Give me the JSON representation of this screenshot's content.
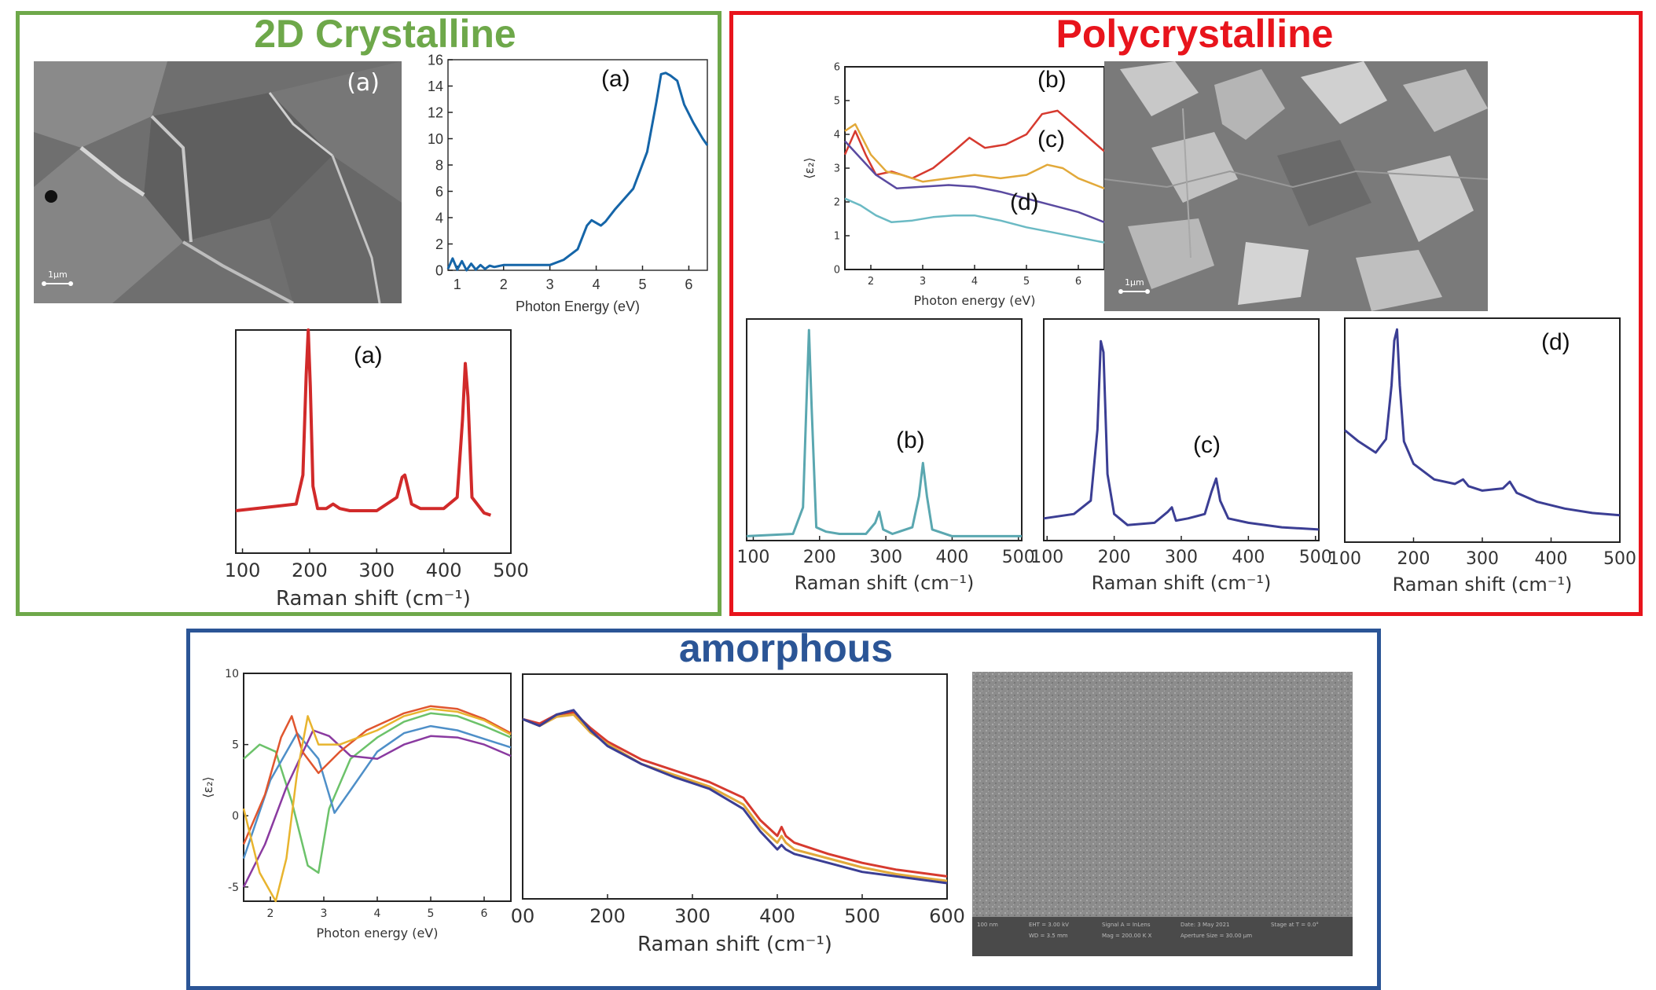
{
  "colors": {
    "green_frame": "#6ea84a",
    "red_frame": "#e8141c",
    "blue_frame": "#2b5596",
    "teal": "#5aa7b0",
    "indigo": "#3b3e94",
    "red_line": "#d12a2a",
    "blue_line": "#1565a8"
  },
  "panels": {
    "crystalline": {
      "title": "2D Crystalline",
      "sem_label": "(a)",
      "scale_label": "1μm"
    },
    "poly": {
      "title": "Polycrystalline",
      "scale_label": "1μm"
    },
    "amorphous": {
      "title": "amorphous",
      "footer": {
        "scale": "100 nm",
        "emt": "EHT = 3.00 kV",
        "wd": "WD = 3.5 mm",
        "signal": "Signal A = InLens",
        "mag": "Mag = 200.00 K X",
        "date": "Date: 3 May 2021",
        "aperture": "Aperture Size = 30.00 μm",
        "stage": "Stage at T = 0.0°"
      }
    }
  },
  "chart_data": [
    {
      "id": "cryst-optical",
      "type": "line",
      "panel_label": "(a)",
      "xlabel": "Photon Energy (eV)",
      "ylabel": "",
      "xlim": [
        0.8,
        6.4
      ],
      "ylim": [
        0,
        16
      ],
      "xticks": [
        "1",
        "2",
        "3",
        "4",
        "5",
        "6"
      ],
      "yticks": [
        "0",
        "2",
        "4",
        "6",
        "8",
        "10",
        "12",
        "14",
        "16"
      ],
      "series": [
        {
          "name": "(a)",
          "color": "#1565a8",
          "x": [
            0.8,
            0.9,
            1.0,
            1.1,
            1.2,
            1.3,
            1.4,
            1.5,
            1.6,
            1.7,
            1.8,
            2.0,
            2.5,
            3.0,
            3.3,
            3.6,
            3.8,
            3.9,
            4.0,
            4.1,
            4.2,
            4.4,
            4.8,
            5.1,
            5.3,
            5.4,
            5.5,
            5.6,
            5.75,
            5.9,
            6.1,
            6.3,
            6.4
          ],
          "y": [
            0.1,
            0.9,
            0.05,
            0.7,
            0.0,
            0.5,
            0.05,
            0.4,
            0.1,
            0.35,
            0.25,
            0.4,
            0.4,
            0.4,
            0.8,
            1.6,
            3.4,
            3.8,
            3.6,
            3.4,
            3.7,
            4.6,
            6.2,
            9.0,
            12.8,
            14.9,
            15.0,
            14.8,
            14.4,
            12.6,
            11.2,
            10.0,
            9.5
          ]
        }
      ]
    },
    {
      "id": "cryst-raman",
      "type": "line",
      "panel_label": "(a)",
      "xlabel": "Raman shift (cm⁻¹)",
      "xlim": [
        90,
        500
      ],
      "ylim": [
        0,
        1
      ],
      "xticks": [
        "100",
        "200",
        "300",
        "400",
        "500"
      ],
      "series": [
        {
          "name": "(a)",
          "color": "#d12a2a",
          "x": [
            90,
            150,
            180,
            190,
            195,
            198,
            201,
            205,
            212,
            225,
            235,
            245,
            260,
            300,
            330,
            338,
            342,
            346,
            352,
            365,
            400,
            420,
            428,
            432,
            436,
            442,
            460,
            470
          ],
          "y": [
            0.19,
            0.21,
            0.22,
            0.35,
            0.8,
            1.0,
            0.75,
            0.3,
            0.2,
            0.2,
            0.22,
            0.2,
            0.19,
            0.19,
            0.25,
            0.34,
            0.35,
            0.3,
            0.22,
            0.2,
            0.2,
            0.25,
            0.6,
            0.85,
            0.7,
            0.25,
            0.18,
            0.17
          ]
        }
      ]
    },
    {
      "id": "poly-optical",
      "type": "line",
      "panel_labels": [
        "(b)",
        "(c)",
        "(d)"
      ],
      "xlabel": "Photon energy (eV)",
      "ylabel": "⟨ε₂⟩",
      "xlim": [
        1.5,
        6.5
      ],
      "ylim": [
        0,
        6
      ],
      "xticks": [
        "2",
        "3",
        "4",
        "5",
        "6"
      ],
      "yticks": [
        "0",
        "1",
        "2",
        "3",
        "4",
        "5",
        "6"
      ],
      "series": [
        {
          "name": "(b)",
          "color": "#d63a2f",
          "x": [
            1.5,
            1.7,
            1.9,
            2.1,
            2.4,
            2.8,
            3.2,
            3.6,
            3.9,
            4.2,
            4.6,
            5.0,
            5.3,
            5.6,
            5.9,
            6.2,
            6.5
          ],
          "y": [
            3.4,
            4.1,
            3.4,
            2.8,
            2.9,
            2.7,
            3.0,
            3.5,
            3.9,
            3.6,
            3.7,
            4.0,
            4.6,
            4.7,
            4.3,
            3.9,
            3.5
          ]
        },
        {
          "name": "(c)",
          "color": "#e2a93a",
          "x": [
            1.5,
            1.7,
            2.0,
            2.3,
            2.6,
            3.0,
            3.5,
            4.0,
            4.5,
            5.0,
            5.4,
            5.7,
            6.0,
            6.5
          ],
          "y": [
            4.1,
            4.3,
            3.4,
            2.9,
            2.8,
            2.6,
            2.7,
            2.8,
            2.7,
            2.8,
            3.1,
            3.0,
            2.7,
            2.4
          ]
        },
        {
          "name": "(d)",
          "color": "#5a4aa0",
          "x": [
            1.5,
            1.8,
            2.1,
            2.5,
            3.0,
            3.5,
            4.0,
            4.5,
            5.0,
            5.5,
            6.0,
            6.5
          ],
          "y": [
            3.8,
            3.3,
            2.8,
            2.4,
            2.45,
            2.5,
            2.45,
            2.3,
            2.1,
            1.9,
            1.7,
            1.4
          ]
        },
        {
          "name": "teal",
          "color": "#6bbac4",
          "x": [
            1.5,
            1.8,
            2.1,
            2.4,
            2.8,
            3.2,
            3.6,
            4.0,
            4.5,
            5.0,
            5.5,
            6.0,
            6.5
          ],
          "y": [
            2.1,
            1.9,
            1.6,
            1.4,
            1.45,
            1.55,
            1.6,
            1.6,
            1.45,
            1.25,
            1.1,
            0.95,
            0.8
          ]
        }
      ]
    },
    {
      "id": "poly-raman-b",
      "type": "line",
      "panel_label": "(b)",
      "xlabel": "Raman shift (cm⁻¹)",
      "xlim": [
        90,
        505
      ],
      "ylim": [
        0,
        1
      ],
      "xticks": [
        "100",
        "200",
        "300",
        "400",
        "500"
      ],
      "series": [
        {
          "name": "(b)",
          "color": "#5aa7b0",
          "x": [
            90,
            160,
            175,
            180,
            184,
            188,
            195,
            210,
            230,
            270,
            284,
            290,
            296,
            310,
            340,
            350,
            356,
            362,
            370,
            400,
            450,
            505
          ],
          "y": [
            0.02,
            0.03,
            0.15,
            0.6,
            0.95,
            0.6,
            0.06,
            0.04,
            0.03,
            0.03,
            0.08,
            0.13,
            0.05,
            0.03,
            0.06,
            0.2,
            0.35,
            0.2,
            0.05,
            0.02,
            0.02,
            0.02
          ]
        }
      ]
    },
    {
      "id": "poly-raman-c",
      "type": "line",
      "panel_label": "(c)",
      "xlabel": "Raman shift (cm⁻¹)",
      "xlim": [
        95,
        505
      ],
      "ylim": [
        0,
        1
      ],
      "xticks": [
        "100",
        "200",
        "300",
        "400",
        "500"
      ],
      "series": [
        {
          "name": "(c)",
          "color": "#3b3e94",
          "x": [
            95,
            140,
            165,
            175,
            180,
            184,
            190,
            200,
            220,
            260,
            280,
            286,
            292,
            310,
            335,
            345,
            352,
            358,
            370,
            400,
            450,
            505
          ],
          "y": [
            0.1,
            0.12,
            0.18,
            0.5,
            0.9,
            0.85,
            0.3,
            0.12,
            0.07,
            0.08,
            0.13,
            0.15,
            0.09,
            0.1,
            0.12,
            0.22,
            0.28,
            0.18,
            0.1,
            0.08,
            0.06,
            0.05
          ]
        }
      ]
    },
    {
      "id": "poly-raman-d",
      "type": "line",
      "panel_label": "(d)",
      "xlabel": "Raman shift (cm⁻¹)",
      "xlim": [
        100,
        500
      ],
      "ylim": [
        0,
        1
      ],
      "xticks": [
        "100",
        "200",
        "300",
        "400",
        "500"
      ],
      "series": [
        {
          "name": "(d)",
          "color": "#3b3e94",
          "x": [
            100,
            120,
            145,
            160,
            168,
            172,
            176,
            180,
            186,
            200,
            230,
            260,
            272,
            280,
            300,
            330,
            340,
            350,
            380,
            420,
            460,
            500
          ],
          "y": [
            0.5,
            0.45,
            0.4,
            0.46,
            0.7,
            0.9,
            0.95,
            0.7,
            0.45,
            0.35,
            0.28,
            0.26,
            0.28,
            0.25,
            0.23,
            0.24,
            0.27,
            0.22,
            0.18,
            0.15,
            0.13,
            0.12
          ]
        }
      ]
    },
    {
      "id": "amor-optical",
      "type": "line",
      "xlabel": "Photon energy (eV)",
      "ylabel": "⟨ε₂⟩",
      "xlim": [
        1.5,
        6.5
      ],
      "ylim": [
        -6,
        10
      ],
      "xticks": [
        "2",
        "3",
        "4",
        "5",
        "6"
      ],
      "yticks": [
        "-5",
        "0",
        "5",
        "10"
      ],
      "series": [
        {
          "name": "green",
          "color": "#6cc26a",
          "x": [
            1.5,
            1.8,
            2.1,
            2.4,
            2.7,
            2.9,
            3.1,
            3.5,
            4.0,
            4.5,
            5.0,
            5.5,
            6.0,
            6.5
          ],
          "y": [
            4.0,
            5.0,
            4.5,
            1.0,
            -3.5,
            -4.0,
            0.5,
            4.0,
            5.5,
            6.6,
            7.2,
            7.0,
            6.3,
            5.5
          ]
        },
        {
          "name": "blue",
          "color": "#4e8fc8",
          "x": [
            1.5,
            2.0,
            2.5,
            2.9,
            3.2,
            3.5,
            4.0,
            4.5,
            5.0,
            5.5,
            6.0,
            6.5
          ],
          "y": [
            -3.0,
            2.5,
            5.8,
            4.0,
            0.2,
            1.8,
            4.5,
            5.8,
            6.3,
            6.0,
            5.4,
            4.8
          ]
        },
        {
          "name": "purple",
          "color": "#8a3aa0",
          "x": [
            1.5,
            1.9,
            2.3,
            2.8,
            3.1,
            3.5,
            4.0,
            4.5,
            5.0,
            5.5,
            6.0,
            6.5
          ],
          "y": [
            -5.0,
            -2.0,
            2.0,
            6.0,
            5.6,
            4.2,
            4.0,
            5.0,
            5.6,
            5.5,
            5.0,
            4.2
          ]
        },
        {
          "name": "orange-red",
          "color": "#e0562f",
          "x": [
            1.5,
            1.9,
            2.2,
            2.4,
            2.6,
            2.9,
            3.3,
            3.8,
            4.5,
            5.0,
            5.5,
            6.0,
            6.5
          ],
          "y": [
            -2.0,
            1.5,
            5.5,
            7.0,
            4.5,
            3.0,
            4.5,
            6.0,
            7.2,
            7.7,
            7.5,
            6.8,
            5.8
          ]
        },
        {
          "name": "yellow",
          "color": "#e8b42e",
          "x": [
            1.5,
            1.8,
            2.1,
            2.3,
            2.5,
            2.7,
            2.9,
            3.3,
            4.0,
            4.5,
            5.0,
            5.5,
            6.0,
            6.5
          ],
          "y": [
            0.5,
            -4.0,
            -6.0,
            -3.0,
            3.0,
            7.0,
            5.0,
            5.0,
            6.0,
            7.0,
            7.5,
            7.3,
            6.7,
            5.7
          ]
        }
      ]
    },
    {
      "id": "amor-raman",
      "type": "line",
      "xlabel": "Raman shift (cm⁻¹)",
      "xlim": [
        100,
        600
      ],
      "ylim": [
        0,
        1
      ],
      "xticks": [
        "00",
        "200",
        "300",
        "400",
        "500",
        "600"
      ],
      "series": [
        {
          "name": "red",
          "color": "#d63a2f",
          "x": [
            100,
            120,
            140,
            160,
            180,
            200,
            240,
            280,
            320,
            360,
            380,
            400,
            405,
            410,
            420,
            460,
            500,
            540,
            580,
            600
          ],
          "y": [
            0.8,
            0.78,
            0.82,
            0.83,
            0.76,
            0.7,
            0.62,
            0.57,
            0.52,
            0.45,
            0.35,
            0.28,
            0.32,
            0.28,
            0.25,
            0.2,
            0.16,
            0.13,
            0.11,
            0.1
          ]
        },
        {
          "name": "yellow",
          "color": "#e2a93a",
          "x": [
            100,
            120,
            140,
            160,
            180,
            200,
            240,
            280,
            320,
            360,
            380,
            400,
            405,
            410,
            420,
            460,
            500,
            540,
            580,
            600
          ],
          "y": [
            0.8,
            0.77,
            0.81,
            0.82,
            0.74,
            0.69,
            0.6,
            0.55,
            0.5,
            0.42,
            0.32,
            0.25,
            0.28,
            0.25,
            0.22,
            0.18,
            0.14,
            0.11,
            0.09,
            0.08
          ]
        },
        {
          "name": "indigo",
          "color": "#3b3e94",
          "x": [
            100,
            120,
            140,
            160,
            180,
            200,
            240,
            280,
            320,
            360,
            380,
            400,
            405,
            410,
            420,
            460,
            500,
            540,
            580,
            600
          ],
          "y": [
            0.8,
            0.77,
            0.82,
            0.84,
            0.75,
            0.68,
            0.6,
            0.54,
            0.49,
            0.4,
            0.3,
            0.22,
            0.24,
            0.22,
            0.2,
            0.16,
            0.12,
            0.1,
            0.08,
            0.07
          ]
        }
      ]
    }
  ]
}
